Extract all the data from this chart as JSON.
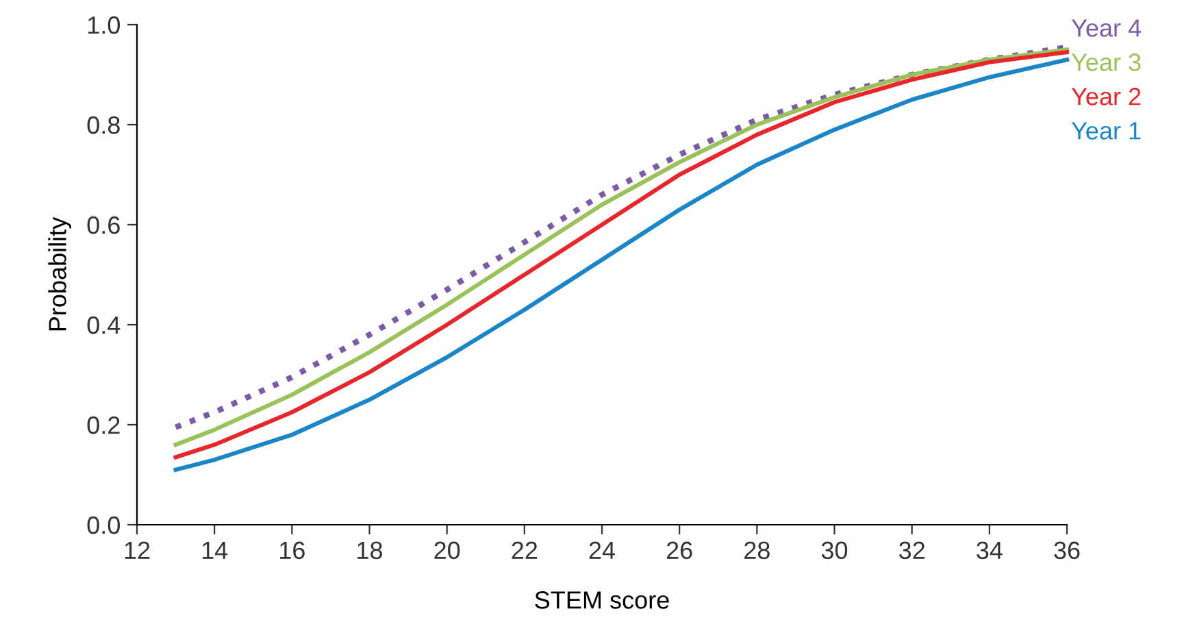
{
  "chart_data": {
    "type": "line",
    "xlabel": "STEM score",
    "ylabel": "Probability",
    "x": [
      13,
      14,
      16,
      18,
      20,
      22,
      24,
      26,
      28,
      30,
      32,
      34,
      36
    ],
    "series": [
      {
        "name": "Year 4",
        "color": "#7b5aa6",
        "line_style": "dotted",
        "values": [
          0.195,
          0.225,
          0.295,
          0.38,
          0.47,
          0.565,
          0.66,
          0.74,
          0.81,
          0.86,
          0.9,
          0.93,
          0.955
        ]
      },
      {
        "name": "Year 3",
        "color": "#9bc25a",
        "line_style": "solid",
        "values": [
          0.16,
          0.19,
          0.26,
          0.345,
          0.44,
          0.54,
          0.64,
          0.725,
          0.8,
          0.855,
          0.9,
          0.93,
          0.95
        ]
      },
      {
        "name": "Year 2",
        "color": "#e8262c",
        "line_style": "solid",
        "values": [
          0.135,
          0.16,
          0.225,
          0.305,
          0.4,
          0.5,
          0.6,
          0.7,
          0.78,
          0.845,
          0.89,
          0.925,
          0.945
        ]
      },
      {
        "name": "Year 1",
        "color": "#1a86c8",
        "line_style": "solid",
        "values": [
          0.11,
          0.13,
          0.18,
          0.25,
          0.335,
          0.43,
          0.53,
          0.63,
          0.72,
          0.79,
          0.85,
          0.895,
          0.93
        ]
      }
    ],
    "xlim": [
      12,
      36
    ],
    "xticks": [
      12,
      14,
      16,
      18,
      20,
      22,
      24,
      26,
      28,
      30,
      32,
      34,
      36
    ],
    "ylim": [
      0,
      1
    ],
    "yticks": [
      {
        "value": 0,
        "label": "0.0"
      },
      {
        "value": 0.2,
        "label": "0.2"
      },
      {
        "value": 0.4,
        "label": "0.4"
      },
      {
        "value": 0.6,
        "label": "0.6"
      },
      {
        "value": 0.8,
        "label": "0.8"
      },
      {
        "value": 1,
        "label": "1.0"
      }
    ],
    "grid": false,
    "legend": false,
    "marker": "none"
  }
}
